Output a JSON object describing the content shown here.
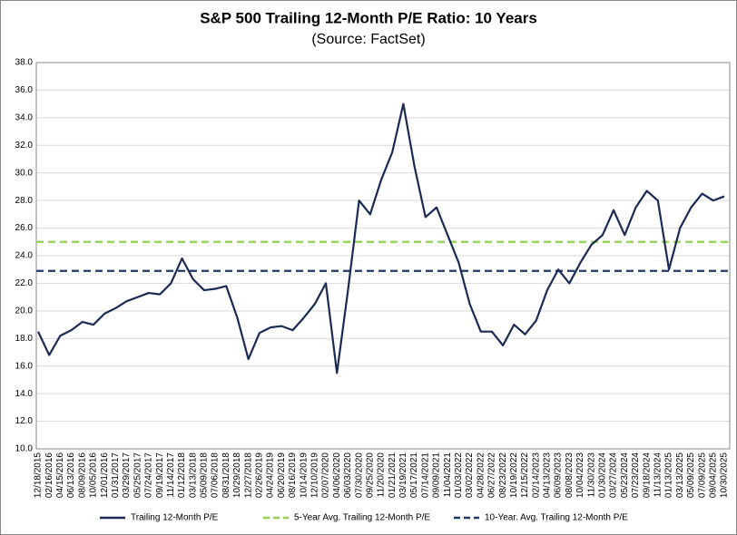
{
  "chart_data": {
    "type": "line",
    "title": "S&P 500 Trailing 12-Month P/E Ratio: 10 Years",
    "subtitle": "(Source: FactSet)",
    "categories": [
      "12/18/2015",
      "02/16/2016",
      "04/15/2016",
      "06/13/2016",
      "08/09/2016",
      "10/05/2016",
      "12/01/2016",
      "01/31/2017",
      "03/29/2017",
      "05/25/2017",
      "07/24/2017",
      "09/19/2017",
      "11/14/2017",
      "01/12/2018",
      "03/13/2018",
      "05/09/2018",
      "07/06/2018",
      "08/31/2018",
      "10/29/2018",
      "12/27/2018",
      "02/26/2019",
      "04/24/2019",
      "06/20/2019",
      "08/16/2019",
      "10/14/2019",
      "12/10/2019",
      "02/07/2020",
      "04/06/2020",
      "06/03/2020",
      "07/30/2020",
      "09/25/2020",
      "11/20/2020",
      "01/21/2021",
      "03/19/2021",
      "05/17/2021",
      "07/14/2021",
      "09/09/2021",
      "11/04/2021",
      "01/03/2022",
      "03/02/2022",
      "04/28/2022",
      "06/27/2022",
      "08/23/2022",
      "10/19/2022",
      "12/15/2022",
      "02/14/2023",
      "04/13/2023",
      "06/09/2023",
      "08/08/2023",
      "10/04/2023",
      "11/30/2023",
      "01/30/2024",
      "03/27/2024",
      "05/23/2024",
      "07/23/2024",
      "09/18/2024",
      "11/13/2024",
      "01/13/2025",
      "03/13/2025",
      "05/09/2025",
      "07/09/2025",
      "09/04/2025",
      "10/30/2025"
    ],
    "series": [
      {
        "name": "Trailing 12-Month P/E",
        "color": "#1b2a55",
        "values": [
          18.5,
          16.8,
          18.2,
          18.6,
          19.2,
          19.0,
          19.8,
          20.2,
          20.7,
          21.0,
          21.3,
          21.2,
          22.0,
          23.8,
          22.3,
          21.5,
          21.6,
          21.8,
          19.5,
          16.5,
          18.4,
          18.8,
          18.9,
          18.6,
          19.5,
          20.5,
          22.0,
          15.5,
          21.5,
          28.0,
          27.0,
          29.5,
          31.5,
          35.0,
          30.5,
          26.8,
          27.5,
          25.5,
          23.5,
          20.5,
          18.5,
          18.5,
          17.5,
          19.0,
          18.3,
          19.3,
          21.5,
          23.0,
          22.0,
          23.5,
          24.8,
          25.5,
          27.3,
          25.5,
          27.5,
          28.7,
          28.0,
          23.0,
          26.0,
          27.5,
          28.5,
          28.0,
          28.3
        ]
      }
    ],
    "reference_lines": [
      {
        "name": "5-Year Avg. Trailing 12-Month P/E",
        "value": 25.0,
        "color": "#92d050"
      },
      {
        "name": "10-Year. Avg. Trailing 12-Month P/E",
        "value": 22.9,
        "color": "#1f3864"
      }
    ],
    "ylim": [
      10,
      38
    ],
    "yticks": [
      {
        "value": 10,
        "label": "10.0"
      },
      {
        "value": 12,
        "label": "12.0"
      },
      {
        "value": 14,
        "label": "14.0"
      },
      {
        "value": 16,
        "label": "16.0"
      },
      {
        "value": 18,
        "label": "18.0"
      },
      {
        "value": 20,
        "label": "20.0"
      },
      {
        "value": 22,
        "label": "22.0"
      },
      {
        "value": 24,
        "label": "24.0"
      },
      {
        "value": 26,
        "label": "26.0"
      },
      {
        "value": 28,
        "label": "28.0"
      },
      {
        "value": 30,
        "label": "30.0"
      },
      {
        "value": 32,
        "label": "32.0"
      },
      {
        "value": 34,
        "label": "34.0"
      },
      {
        "value": 36,
        "label": "36.0"
      },
      {
        "value": 38,
        "label": "38.0"
      }
    ],
    "grid": true
  }
}
